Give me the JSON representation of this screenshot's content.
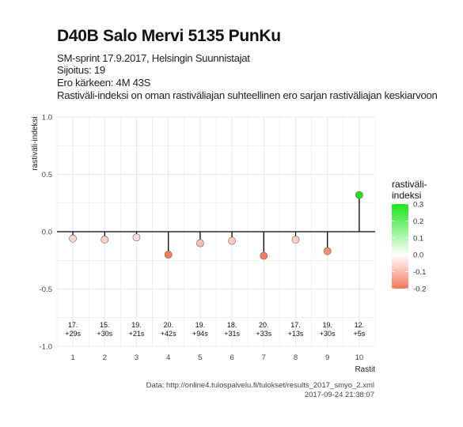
{
  "header": {
    "title": "D40B Salo Mervi 5135 PunKu",
    "subtitle_lines": [
      "SM-sprint 17.9.2017, Helsingin Suunnistajat",
      "Sijoitus: 19",
      "Ero kärkeen: 4M 43S",
      "Rastiväli-indeksi on oman rastiväliajan suhteellinen ero sarjan rastiväliajan keskiarvoon"
    ]
  },
  "footer": {
    "source": "Data: http://online4.tulospalvelu.fi/tulokset/results_2017_smyo_2.xml",
    "timestamp": "2017-09-24 21:38:07"
  },
  "chart_data": {
    "type": "scatter",
    "style": "lollipop",
    "xlabel": "Rastit",
    "ylabel": "rastiväli-indeksi",
    "xlim": [
      0.5,
      10.5
    ],
    "ylim": [
      -1.0,
      1.0
    ],
    "x_ticks": [
      1,
      2,
      3,
      4,
      5,
      6,
      7,
      8,
      9,
      10
    ],
    "y_ticks": [
      -1.0,
      -0.5,
      0.0,
      0.5,
      1.0
    ],
    "y_tick_labels": [
      "-1.0",
      "-0.5",
      "0.0",
      "0.5",
      "1.0"
    ],
    "grid": true,
    "legend": {
      "title": "rastiväli-\nindeksi",
      "type": "colorbar",
      "position": "right",
      "range": [
        -0.2,
        0.3
      ],
      "ticks": [
        "0.3",
        "0.2",
        "0.1",
        "0.0",
        "-0.1",
        "-0.2"
      ],
      "low_color": "#f4785a",
      "mid_color": "#ffffff",
      "high_color": "#19e619"
    },
    "points": [
      {
        "x": 1,
        "y": -0.06,
        "rank": "17.",
        "diff": "+29s"
      },
      {
        "x": 2,
        "y": -0.07,
        "rank": "15.",
        "diff": "+30s"
      },
      {
        "x": 3,
        "y": -0.05,
        "rank": "19.",
        "diff": "+21s"
      },
      {
        "x": 4,
        "y": -0.2,
        "rank": "20.",
        "diff": "+42s"
      },
      {
        "x": 5,
        "y": -0.1,
        "rank": "19.",
        "diff": "+94s"
      },
      {
        "x": 6,
        "y": -0.08,
        "rank": "18.",
        "diff": "+31s"
      },
      {
        "x": 7,
        "y": -0.21,
        "rank": "20.",
        "diff": "+33s"
      },
      {
        "x": 8,
        "y": -0.07,
        "rank": "17.",
        "diff": "+13s"
      },
      {
        "x": 9,
        "y": -0.17,
        "rank": "19.",
        "diff": "+30s"
      },
      {
        "x": 10,
        "y": 0.32,
        "rank": "12.",
        "diff": "+5s"
      }
    ]
  }
}
